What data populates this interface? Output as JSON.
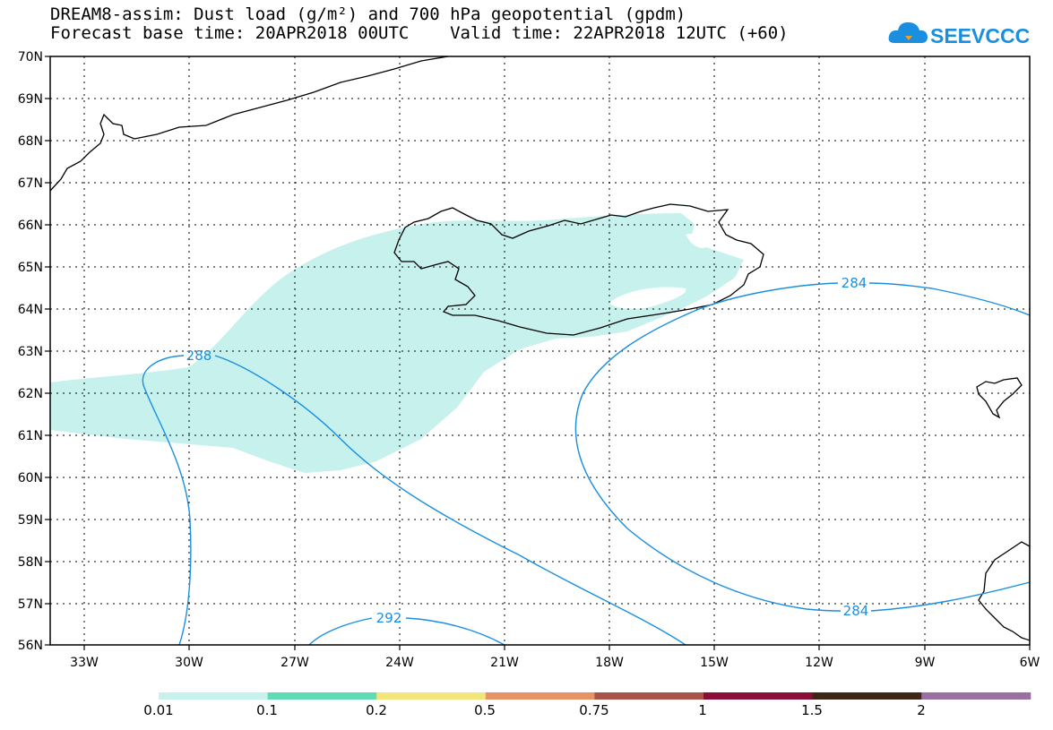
{
  "title": {
    "line1": "DREAM8-assim: Dust load (g/m²) and 700 hPa geopotential (gpdm)",
    "line2": "Forecast base time: 20APR2018 00UTC    Valid time: 22APR2018 12UTC (+60)"
  },
  "logo": {
    "text": "SEEVCCC",
    "icon": "cloud-logo-icon",
    "color": "#1a8fe0"
  },
  "map": {
    "lat_labels": [
      "70N",
      "69N",
      "68N",
      "67N",
      "66N",
      "65N",
      "64N",
      "63N",
      "62N",
      "61N",
      "60N",
      "59N",
      "58N",
      "57N",
      "56N"
    ],
    "lon_labels": [
      "33W",
      "30W",
      "27W",
      "24W",
      "21W",
      "18W",
      "15W",
      "12W",
      "9W",
      "6W"
    ],
    "lat_range": [
      56,
      70
    ],
    "lon_range": [
      -34.5,
      -6
    ],
    "grid": "dotted",
    "dust_fill_color": "#c6f1ec",
    "contour_color": "#1a8fe0",
    "contour_labels": [
      "288",
      "284",
      "284",
      "292"
    ]
  },
  "legend": {
    "labels": [
      "0.01",
      "0.1",
      "0.2",
      "0.5",
      "0.75",
      "1",
      "1.5",
      "2"
    ],
    "colors": [
      "#c6f1ec",
      "#5fdcb5",
      "#f2e57a",
      "#e89268",
      "#a8544a",
      "#8a0e38",
      "#3d2818",
      "#9b6fa0"
    ]
  }
}
